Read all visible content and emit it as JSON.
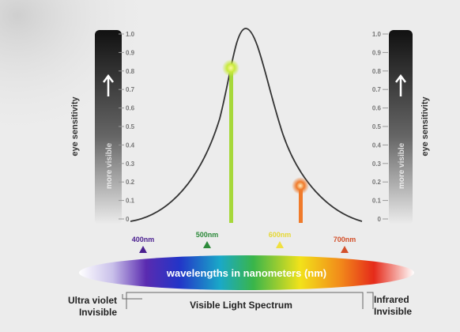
{
  "axis": {
    "label": "eye sensitivity",
    "direction_label": "more visible",
    "ticks": [
      "1.0",
      "0.9",
      "0.8",
      "0.7",
      "0.6",
      "0.5",
      "0.4",
      "0.3",
      "0.2",
      "0.1",
      "0"
    ]
  },
  "wavelength_markers": [
    {
      "label": "400nm",
      "color": "#4a1f8f"
    },
    {
      "label": "500nm",
      "color": "#2c8a3a"
    },
    {
      "label": "600nm",
      "color": "#e6d836"
    },
    {
      "label": "700nm",
      "color": "#d3502a"
    }
  ],
  "spectrum_bar_label": "wavelengths in nanometers (nm)",
  "regions": {
    "uv": [
      "Ultra violet",
      "Invisible"
    ],
    "visible": "Visible Light Spectrum",
    "ir": [
      "Infrared",
      "Invisible"
    ]
  },
  "colors": {
    "curve": "#333333",
    "green_line": "#a6d83a",
    "orange_line": "#f07a2a",
    "background": "#ececec"
  }
}
